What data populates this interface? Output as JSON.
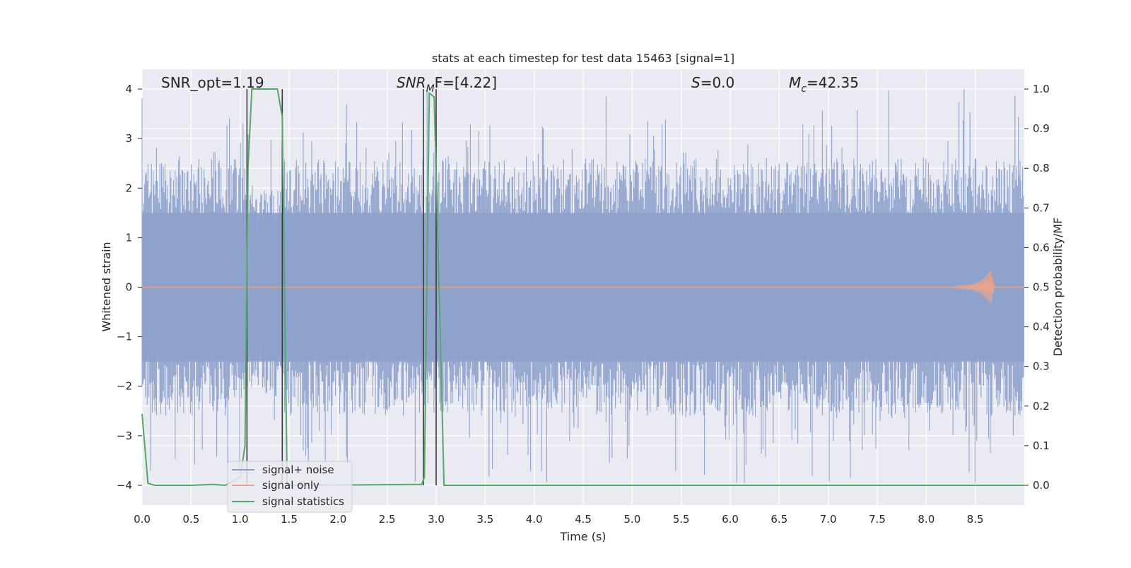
{
  "chart_data": {
    "type": "line",
    "title": "stats at each timestep for test data 15463 [signal=1]",
    "xlabel": "Time (s)",
    "ylabel_left": "Whitened strain",
    "ylabel_right": "Detection probability/MF",
    "xlim": [
      0.0,
      9.0
    ],
    "ylim_left": [
      -4.4,
      4.4
    ],
    "ylim_right": [
      -0.05,
      1.05
    ],
    "x_ticks": [
      "0.0",
      "0.5",
      "1.0",
      "1.5",
      "2.0",
      "2.5",
      "3.0",
      "3.5",
      "4.0",
      "4.5",
      "5.0",
      "5.5",
      "6.0",
      "6.5",
      "7.0",
      "7.5",
      "8.0",
      "8.5"
    ],
    "y_ticks_left": [
      "−4",
      "−3",
      "−2",
      "−1",
      "0",
      "1",
      "2",
      "3",
      "4"
    ],
    "y_ticks_right": [
      "0.0",
      "0.1",
      "0.2",
      "0.3",
      "0.4",
      "0.5",
      "0.6",
      "0.7",
      "0.8",
      "0.9",
      "1.0"
    ],
    "grid": true,
    "legend_position": "lower-left",
    "annotations": {
      "snr_opt": "SNR_opt=1.19",
      "snr_mf_main": "SNR",
      "snr_mf_sub": "M",
      "snr_mf_rest": "F=[4.22]",
      "s_italic": "S",
      "s_value": "=0.0",
      "mc_main": "M",
      "mc_sub": "c",
      "mc_value": "=42.35"
    },
    "series": [
      {
        "name": "signal+ noise",
        "color": "#8da0cb",
        "style": "noise band, whitened strain, amplitude mostly within ±2.5, peaks near ±4"
      },
      {
        "name": "signal only",
        "color": "#e5a48c",
        "x": [
          8.3,
          8.45,
          8.55,
          8.62,
          8.66,
          8.7
        ],
        "amplitude": [
          0.02,
          0.05,
          0.12,
          0.25,
          0.35,
          0.0
        ]
      },
      {
        "name": "signal statistics",
        "color": "#55a868",
        "x": [
          0.0,
          0.06,
          0.13,
          0.5,
          0.72,
          0.85,
          1.0,
          1.05,
          1.08,
          1.12,
          1.38,
          1.43,
          1.48,
          2.85,
          2.88,
          2.93,
          2.98,
          3.03,
          3.08,
          9.0
        ],
        "y": [
          0.18,
          0.005,
          0.0,
          0.0,
          0.002,
          0.0,
          0.02,
          0.1,
          0.8,
          1.0,
          1.0,
          0.93,
          0.0,
          0.002,
          0.02,
          0.99,
          0.98,
          0.5,
          0.0,
          0.0
        ]
      }
    ],
    "vertical_lines_x": [
      1.07,
      1.43,
      2.87,
      3.0
    ]
  }
}
